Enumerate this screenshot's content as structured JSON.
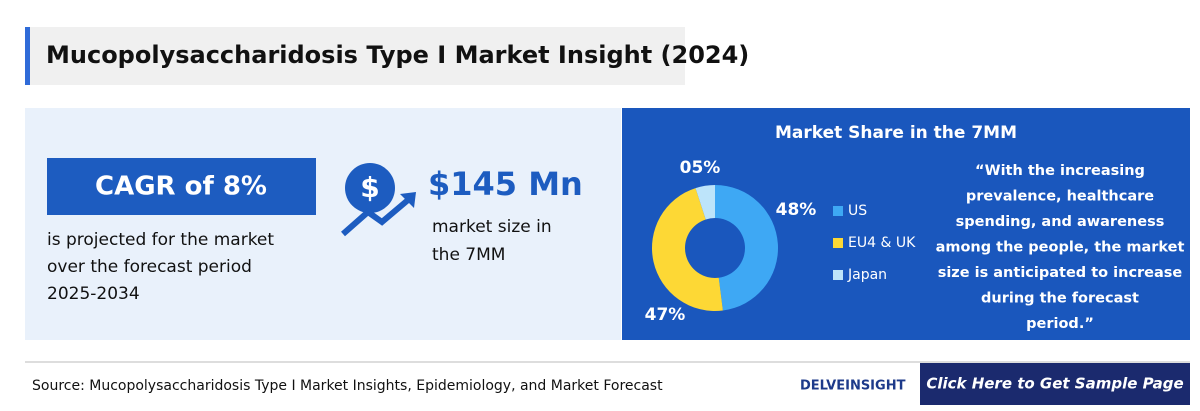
{
  "header": {
    "title": "Mucopolysaccharidosis Type I Market Insight (2024)"
  },
  "cagr": {
    "heading": "CAGR of 8%",
    "text": [
      "is projected for the market",
      "over the forecast period",
      "2025-2034"
    ]
  },
  "market_size": {
    "icon": "$",
    "value": "$145 Mn",
    "text": [
      "market size in",
      "the 7MM"
    ]
  },
  "market_share": {
    "title": "Market Share in the 7MM",
    "chart": {
      "type": "pie",
      "categories": [
        "US",
        "EU4 & UK",
        "Japan"
      ],
      "values": [
        48,
        47,
        5
      ],
      "value_labels": [
        "48%",
        "47%",
        "05%"
      ],
      "colors": [
        "#3ea8f4",
        "#fdd835",
        "#bde4fa"
      ]
    },
    "quote": [
      "“With the increasing",
      "prevalence, healthcare",
      "spending, and awareness",
      "among the people, the market",
      "size is anticipated to increase",
      "during the forecast",
      "period.”"
    ]
  },
  "footer": {
    "source": "Source: Mucopolysaccharidosis Type I Market Insights, Epidemiology, and Market Forecast",
    "logo": "DELVEINSIGHT",
    "button": "Click Here to Get Sample Page"
  }
}
